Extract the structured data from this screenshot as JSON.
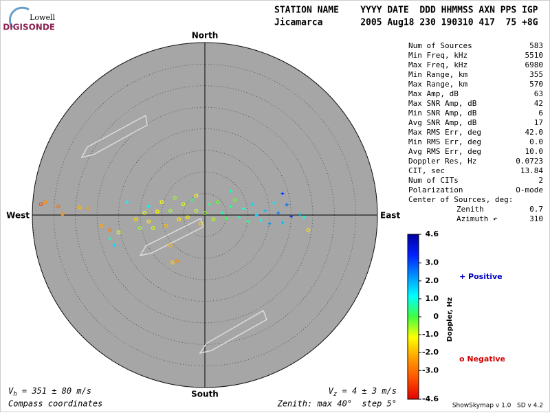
{
  "logo": {
    "top": "Lowell",
    "bottom": "DIGISONDE"
  },
  "header": {
    "line1": "STATION NAME    YYYY DATE  DDD HHMMSS AXN PPS IGP",
    "line2": "Jicamarca       2005 Aug18 230 190310 417  75 +8G"
  },
  "stats": [
    [
      "Num of Sources",
      "583"
    ],
    [
      "Min Freq, kHz",
      "5510"
    ],
    [
      "Max Freq, kHz",
      "6980"
    ],
    [
      "Min Range, km",
      "355"
    ],
    [
      "Max Range, km",
      "570"
    ],
    [
      "Max Amp, dB",
      "63"
    ],
    [
      "Max SNR Amp, dB",
      "42"
    ],
    [
      "Min SNR Amp, dB",
      "6"
    ],
    [
      "Avg SNR Amp, dB",
      "17"
    ],
    [
      "Max RMS Err, deg",
      "42.0"
    ],
    [
      "Min RMS Err, deg",
      "0.0"
    ],
    [
      "Avg RMS Err, deg",
      "10.0"
    ],
    [
      "Doppler Res, Hz",
      "0.0723"
    ],
    [
      "CIT, sec",
      "13.84"
    ],
    [
      "Num of CITs",
      "2"
    ],
    [
      "Polarization",
      "O-mode"
    ]
  ],
  "center": {
    "title": "Center of Sources, deg:",
    "rows": [
      [
        "Zenith",
        "0.7"
      ],
      [
        "Azimuth ↶",
        "310"
      ]
    ]
  },
  "footer": {
    "vh_symbol": "V",
    "vh_sub": "h",
    "vh_text": " = 351 ± 80 m/s",
    "vz_symbol": "V",
    "vz_sub": "z",
    "vz_text": " = 4 ± 3 m/s",
    "coords": "Compass coordinates",
    "zenith": "Zenith: max 40°  step 5°",
    "version": "ShowSkymap v 1.0   SD v 4.2"
  },
  "legend": {
    "positive": "+ Positive",
    "negative": "o Negative"
  },
  "chart_data": {
    "type": "scatter",
    "north": "North",
    "south": "South",
    "east": "East",
    "west": "West",
    "xlim": [
      -40,
      40
    ],
    "ylim": [
      -40,
      40
    ],
    "rings": [
      5,
      10,
      15,
      20,
      25,
      30,
      35,
      40
    ],
    "x": [
      -38,
      -37,
      -34,
      -33,
      -29,
      -27,
      -24,
      -22,
      -21,
      -22,
      -18,
      -16,
      -14,
      -13,
      -13,
      -12,
      -11,
      -10,
      -9,
      -8,
      -7,
      -6,
      -5,
      -4,
      -3,
      -2,
      -1,
      0,
      1,
      2,
      3,
      4,
      5,
      6,
      7,
      8,
      9,
      10,
      11,
      12,
      13,
      14,
      15,
      16,
      17,
      18,
      18,
      19,
      20,
      22,
      23,
      24,
      -8,
      -7.5,
      -6.5,
      -20,
      -15,
      -2,
      6
    ],
    "y": [
      2.5,
      3,
      2,
      0.3,
      1.8,
      1.5,
      -2.5,
      -3.5,
      -7,
      -5.5,
      3,
      -1,
      0.5,
      2,
      -1.5,
      -3,
      0.8,
      3,
      -2.5,
      1,
      4,
      -1,
      2.5,
      -0.5,
      3.5,
      1,
      -2,
      0.5,
      2.5,
      -1,
      3,
      0.5,
      -0.8,
      2,
      3.5,
      -0.5,
      1.5,
      -1.5,
      2.5,
      0,
      -1.2,
      1,
      -2,
      2.8,
      0.5,
      -1.8,
      5,
      2.4,
      -0.3,
      0.2,
      -0.5,
      -3.5,
      -7,
      -11,
      -10.7,
      -4,
      -3,
      4.5,
      5.5
    ],
    "doppler": [
      -3.5,
      -2.6,
      -3,
      -2.5,
      -2,
      -2.3,
      -2.2,
      -2.8,
      1.5,
      0.8,
      1.2,
      -1.6,
      -1,
      1.2,
      -1.4,
      -0.8,
      -1.2,
      -1.1,
      -2,
      -0.6,
      -0.5,
      -1.5,
      -0.9,
      -1.3,
      0.3,
      -0.8,
      -1.7,
      -0.4,
      0.4,
      -0.7,
      -0.2,
      0.6,
      0.2,
      0.5,
      -0.3,
      0.7,
      0.9,
      0.5,
      1.5,
      1.6,
      1.1,
      1.8,
      2.2,
      1.3,
      2.5,
      1.9,
      3.2,
      2.7,
      3.5,
      1.6,
      0.9,
      -1.5,
      -2.1,
      -1.8,
      -2.6,
      -1,
      -0.5,
      -1.2,
      0.8
    ],
    "colorbar": {
      "label": "Doppler, Hz",
      "lim": [
        -4.6,
        4.6
      ],
      "ticks": [
        4.6,
        {
          "value": 3.0,
          "label": "3.0"
        },
        {
          "value": 2.0,
          "label": "2.0"
        },
        {
          "value": 1.0,
          "label": "1.0"
        },
        0,
        {
          "value": -1.0,
          "label": "-1.0"
        },
        {
          "value": -2.0,
          "label": "-2.0"
        },
        {
          "value": -3.0,
          "label": "-3.0"
        },
        -4.6
      ],
      "colors": [
        "#e00000",
        "#ff5000",
        "#ffa000",
        "#ffff00",
        "#40ff40",
        "#00ffff",
        "#0090ff",
        "#0020ff",
        "#0000a0"
      ]
    },
    "positive_color": "#0000c0",
    "negative_color": "#d00000"
  }
}
